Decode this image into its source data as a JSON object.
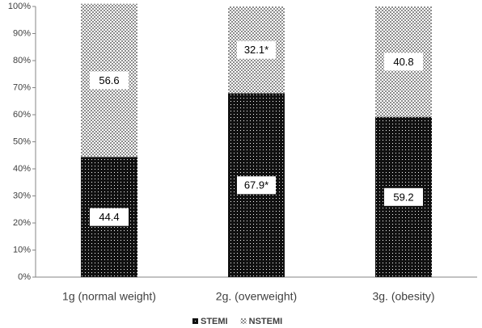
{
  "chart_data": {
    "type": "bar",
    "stacked": true,
    "categories": [
      "1g (normal weight)",
      "2g. (overweight)",
      "3g. (obesity)"
    ],
    "series": [
      {
        "name": "STEMI",
        "color": "#111111",
        "values": [
          44.4,
          67.9,
          59.2
        ],
        "value_labels": [
          "44.4",
          "67.9*",
          "59.2"
        ]
      },
      {
        "name": "NSTEMI",
        "color": "#8c8c8c",
        "values": [
          56.6,
          32.1,
          40.8
        ],
        "value_labels": [
          "56.6",
          "32.1*",
          "40.8"
        ]
      }
    ],
    "ylim": [
      0,
      100
    ],
    "yticks": [
      {
        "value": 0,
        "label": "0%"
      },
      {
        "value": 10,
        "label": "10%"
      },
      {
        "value": 20,
        "label": "20%"
      },
      {
        "value": 30,
        "label": "30%"
      },
      {
        "value": 40,
        "label": "40%"
      },
      {
        "value": 50,
        "label": "50%"
      },
      {
        "value": 60,
        "label": "60%"
      },
      {
        "value": 70,
        "label": "70%"
      },
      {
        "value": 80,
        "label": "80%"
      },
      {
        "value": 90,
        "label": "90%"
      },
      {
        "value": 100,
        "label": "100%"
      }
    ],
    "grid": false
  }
}
